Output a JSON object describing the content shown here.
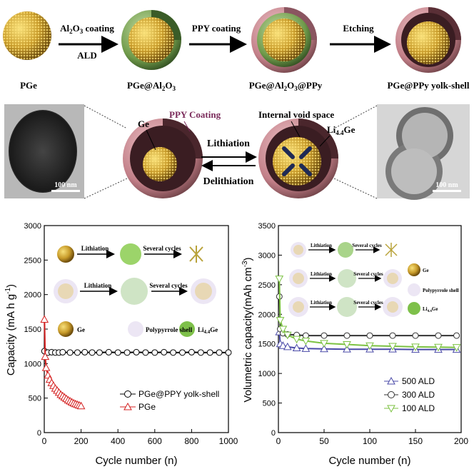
{
  "schematic": {
    "stages": [
      "PGe",
      "PGe@Al2O3",
      "PGe@Al2O3@PPy",
      "PGe@PPy yolk-shell"
    ],
    "steps": [
      {
        "top": "Al2O3 coating",
        "bottom": "ALD"
      },
      {
        "top": "PPY coating",
        "bottom": ""
      },
      {
        "top": "Etching",
        "bottom": ""
      }
    ],
    "mechanism": {
      "ge_label": "Ge",
      "ppy_label": "PPY Coating",
      "void_label": "Internal void space",
      "li_label": "Li4.4Ge",
      "forward": "Lithiation",
      "reverse": "Delithiation",
      "tem_scale_left": "100 nm",
      "tem_scale_right": "100 nm"
    }
  },
  "chart_data": [
    {
      "type": "scatter",
      "title": "",
      "xlabel": "Cycle number (n)",
      "ylabel": "Capacity (mA h g-1)",
      "xlim": [
        0,
        1000
      ],
      "ylim": [
        0,
        3000
      ],
      "xticks": [
        "0",
        "200",
        "400",
        "600",
        "800",
        "1000"
      ],
      "yticks": [
        "0",
        "500",
        "1000",
        "1500",
        "2000",
        "2500",
        "3000"
      ],
      "series": [
        {
          "name": "PGe@PPY yolk-shell",
          "color": "#000000",
          "marker": "circle",
          "x": [
            1,
            20,
            40,
            60,
            80,
            100,
            140,
            180,
            220,
            260,
            300,
            350,
            400,
            450,
            500,
            550,
            600,
            650,
            700,
            750,
            800,
            850,
            900,
            950,
            1000
          ],
          "y": [
            1180,
            1160,
            1165,
            1160,
            1160,
            1165,
            1160,
            1160,
            1165,
            1160,
            1160,
            1165,
            1160,
            1160,
            1165,
            1160,
            1160,
            1165,
            1160,
            1160,
            1165,
            1160,
            1160,
            1160,
            1160
          ]
        },
        {
          "name": "PGe",
          "color": "#d42020",
          "marker": "triangle",
          "x": [
            1,
            5,
            10,
            20,
            30,
            40,
            50,
            60,
            70,
            80,
            90,
            100,
            110,
            120,
            130,
            140,
            150,
            160,
            170,
            180,
            190,
            200
          ],
          "y": [
            1640,
            1100,
            940,
            830,
            770,
            720,
            680,
            640,
            610,
            580,
            550,
            530,
            510,
            490,
            470,
            455,
            440,
            425,
            415,
            405,
            395,
            385
          ]
        }
      ],
      "legend": "bottom-right",
      "inset_labels": {
        "step1": "Lithiation",
        "step2": "Several cycles",
        "legend": [
          "Ge",
          "Polypyrrole shell",
          "Li4.4Ge"
        ]
      }
    },
    {
      "type": "scatter",
      "title": "",
      "xlabel": "Cycle number (n)",
      "ylabel": "Volumetric capacity(mAh cm-3)",
      "xlim": [
        0,
        200
      ],
      "ylim": [
        0,
        3500
      ],
      "xticks": [
        "0",
        "50",
        "100",
        "150",
        "200"
      ],
      "yticks": [
        "0",
        "500",
        "1000",
        "1500",
        "2000",
        "2500",
        "3000",
        "3500"
      ],
      "series": [
        {
          "name": "500 ALD",
          "color": "#4a4aa8",
          "marker": "triangle",
          "x": [
            1,
            2,
            5,
            10,
            20,
            30,
            50,
            75,
            100,
            125,
            150,
            175,
            195
          ],
          "y": [
            1700,
            1500,
            1470,
            1450,
            1430,
            1420,
            1415,
            1410,
            1410,
            1410,
            1405,
            1405,
            1405
          ]
        },
        {
          "name": "300 ALD",
          "color": "#333333",
          "marker": "circle",
          "x": [
            1,
            2,
            5,
            10,
            20,
            30,
            50,
            75,
            100,
            125,
            150,
            175,
            195
          ],
          "y": [
            2300,
            1750,
            1680,
            1660,
            1650,
            1640,
            1640,
            1640,
            1640,
            1640,
            1640,
            1640,
            1640
          ]
        },
        {
          "name": "100 ALD",
          "color": "#7cc242",
          "marker": "triangle-down",
          "x": [
            1,
            2,
            5,
            10,
            20,
            30,
            50,
            75,
            100,
            125,
            150,
            175,
            195
          ],
          "y": [
            2600,
            1900,
            1750,
            1650,
            1580,
            1550,
            1510,
            1490,
            1470,
            1460,
            1450,
            1445,
            1440
          ]
        }
      ],
      "legend": "bottom-right",
      "inset_labels": {
        "step1": "Lithiation",
        "step2": "Several cycles",
        "legend": [
          "Ge",
          "Polypyrrole shell",
          "Li4.4Ge"
        ]
      }
    }
  ],
  "colors": {
    "shell": "#d9a0a8",
    "core": "#c89b2a",
    "alumina": "#7da85a"
  }
}
